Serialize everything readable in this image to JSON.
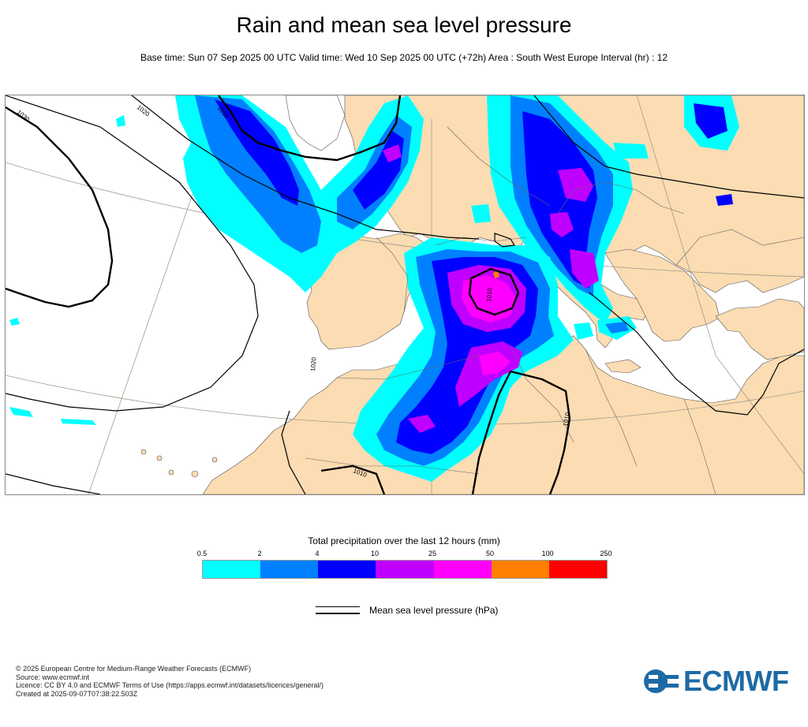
{
  "header": {
    "title": "Rain and mean sea level pressure",
    "subtitle": "Base time: Sun 07 Sep 2025 00 UTC Valid time: Wed 10 Sep 2025 00 UTC (+72h) Area : South West Europe Interval (hr) : 12"
  },
  "map": {
    "isobar_labels": [
      "1030",
      "1020",
      "1010",
      "1020",
      "1010",
      "1010",
      "1010"
    ],
    "colors": {
      "land": "#fcdcb2",
      "sea": "#ffffff",
      "isobar": "#000000",
      "grid": "#a09a8c"
    }
  },
  "legend": {
    "title": "Total precipitation over the last 12 hours (mm)",
    "ticks": [
      "0.5",
      "2",
      "4",
      "10",
      "25",
      "50",
      "100",
      "250"
    ],
    "colors": [
      "#00ffff",
      "#0080ff",
      "#0000ff",
      "#c000ff",
      "#ff00ff",
      "#ff8000",
      "#ff0000"
    ],
    "mslp_label": "Mean sea level pressure (hPa)"
  },
  "footer": {
    "lines": [
      "© 2025 European Centre for Medium-Range Weather Forecasts (ECMWF)",
      "Source: www.ecmwf.int",
      "Licence: CC BY 4.0 and ECMWF Terms of Use (https://apps.ecmwf.int/datasets/licences/general/)",
      "Created at 2025-09-07T07:38:22.503Z"
    ],
    "logo_text": "ECMWF",
    "logo_icon": "ecmwf-logo-icon"
  }
}
